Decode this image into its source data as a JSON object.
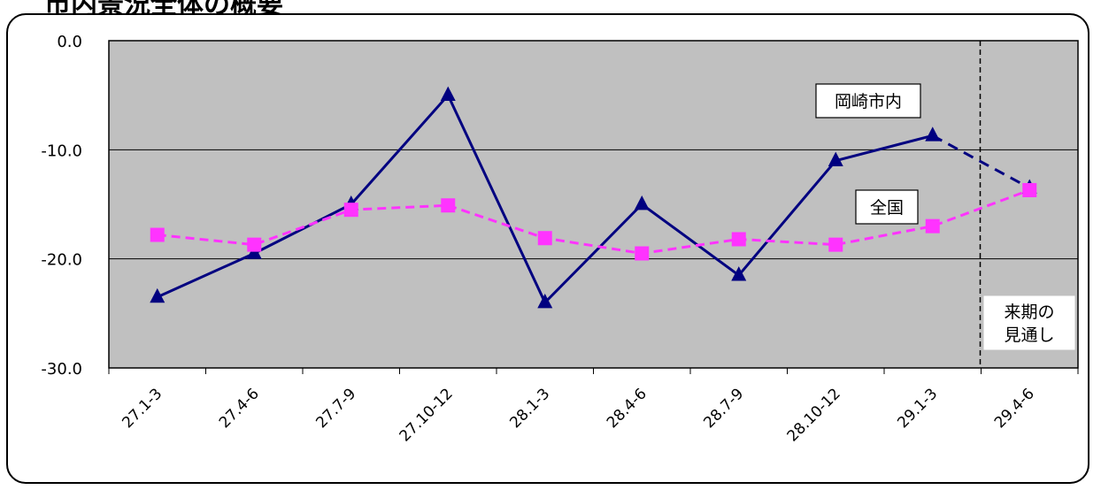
{
  "page": {
    "title": "市内景況全体の概要"
  },
  "chart_data": {
    "type": "line",
    "categories": [
      "27.1-3",
      "27.4-6",
      "27.7-9",
      "27.10-12",
      "28.1-3",
      "28.4-6",
      "28.7-9",
      "28.10-12",
      "29.1-3",
      "29.4-6"
    ],
    "series": [
      {
        "name": "岡崎市内",
        "values": [
          -23.5,
          -19.5,
          -15.0,
          -5.0,
          -24.0,
          -15.0,
          -21.5,
          -11.0,
          -8.7,
          -13.5
        ],
        "color": "#000080",
        "marker": "triangle"
      },
      {
        "name": "全国",
        "values": [
          -17.8,
          -18.7,
          -15.5,
          -15.1,
          -18.1,
          -19.5,
          -18.2,
          -18.7,
          -17.0,
          -13.7
        ],
        "color": "#ff33ff",
        "marker": "square"
      }
    ],
    "ylim": [
      -30,
      0
    ],
    "yticks": [
      "0.0",
      "-10.0",
      "-20.0",
      "-30.0"
    ],
    "grid": true,
    "plot_background": "#c0c0c0",
    "forecast_label": [
      "来期の",
      "見通し"
    ],
    "xlabel": "",
    "ylabel": ""
  }
}
